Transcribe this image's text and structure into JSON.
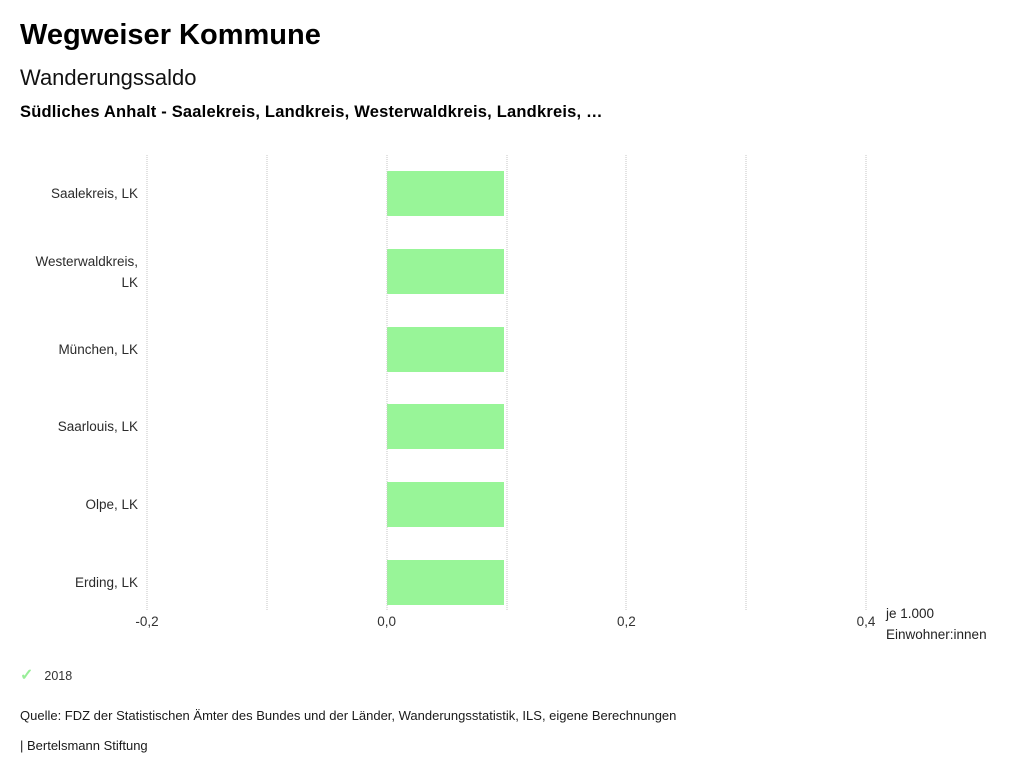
{
  "header": {
    "app_title": "Wegweiser Kommune",
    "chart_title": "Wanderungssaldo",
    "selection": "Südliches Anhalt - Saalekreis, Landkreis, Westerwaldkreis, Landkreis, …"
  },
  "chart_data": {
    "type": "bar",
    "orientation": "horizontal",
    "title": "Wanderungssaldo",
    "subtitle": "Südliches Anhalt - Saalekreis, Landkreis, Westerwaldkreis, Landkreis, …",
    "categories": [
      "Saalekreis, LK",
      "Westerwaldkreis, LK",
      "München, LK",
      "Saarlouis, LK",
      "Olpe, LK",
      "Erding, LK"
    ],
    "series": [
      {
        "name": "2018",
        "values": [
          0.098,
          0.098,
          0.098,
          0.098,
          0.098,
          0.098
        ]
      }
    ],
    "xlim": [
      -0.2,
      0.4
    ],
    "x_ticks": [
      {
        "v": -0.2,
        "label": "-0,2"
      },
      {
        "v": -0.1,
        "label": ""
      },
      {
        "v": 0.0,
        "label": "0,0"
      },
      {
        "v": 0.1,
        "label": ""
      },
      {
        "v": 0.2,
        "label": "0,2"
      },
      {
        "v": 0.3,
        "label": ""
      },
      {
        "v": 0.4,
        "label": "0,4"
      }
    ],
    "xlabel": "je 1.000 Einwohner:innen",
    "unit_lines": [
      "je 1.000",
      "Einwohner:innen"
    ],
    "bar_color": "#98f598",
    "grid": "vertical-dotted",
    "legend_position": "bottom-left"
  },
  "legend": {
    "items": [
      {
        "icon": "check-icon",
        "glyph": "✓",
        "label": "2018",
        "color": "#98ee98"
      }
    ]
  },
  "footer": {
    "source": "Quelle: FDZ der Statistischen Ämter des Bundes und der Länder, Wanderungsstatistik, ILS, eigene Berechnungen",
    "brand": "| Bertelsmann Stiftung"
  }
}
